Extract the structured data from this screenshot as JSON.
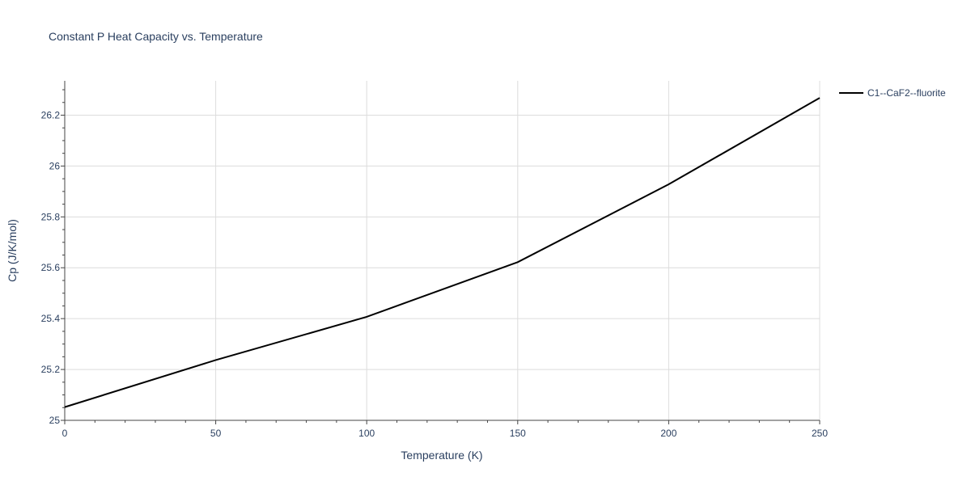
{
  "chart_data": {
    "type": "line",
    "title": "Constant P Heat Capacity vs. Temperature",
    "xlabel": "Temperature (K)",
    "ylabel": "Cp (J/K/mol)",
    "xlim": [
      0,
      250
    ],
    "ylim": [
      25.0,
      26.335
    ],
    "x_ticks": [
      0,
      50,
      100,
      150,
      200,
      250
    ],
    "x_tick_labels": [
      "0",
      "50",
      "100",
      "150",
      "200",
      "250"
    ],
    "y_ticks": [
      25.0,
      25.2,
      25.4,
      25.6,
      25.8,
      26.0,
      26.2
    ],
    "y_tick_labels": [
      "25",
      "25.2",
      "25.4",
      "25.6",
      "25.8",
      "26",
      "26.2"
    ],
    "grid": true,
    "legend_position": "top-right",
    "series": [
      {
        "name": "C1--CaF2--fluorite",
        "color": "#000000",
        "x": [
          0,
          50,
          100,
          150,
          200,
          250
        ],
        "y": [
          25.052,
          25.237,
          25.407,
          25.622,
          25.928,
          26.268
        ]
      }
    ]
  }
}
